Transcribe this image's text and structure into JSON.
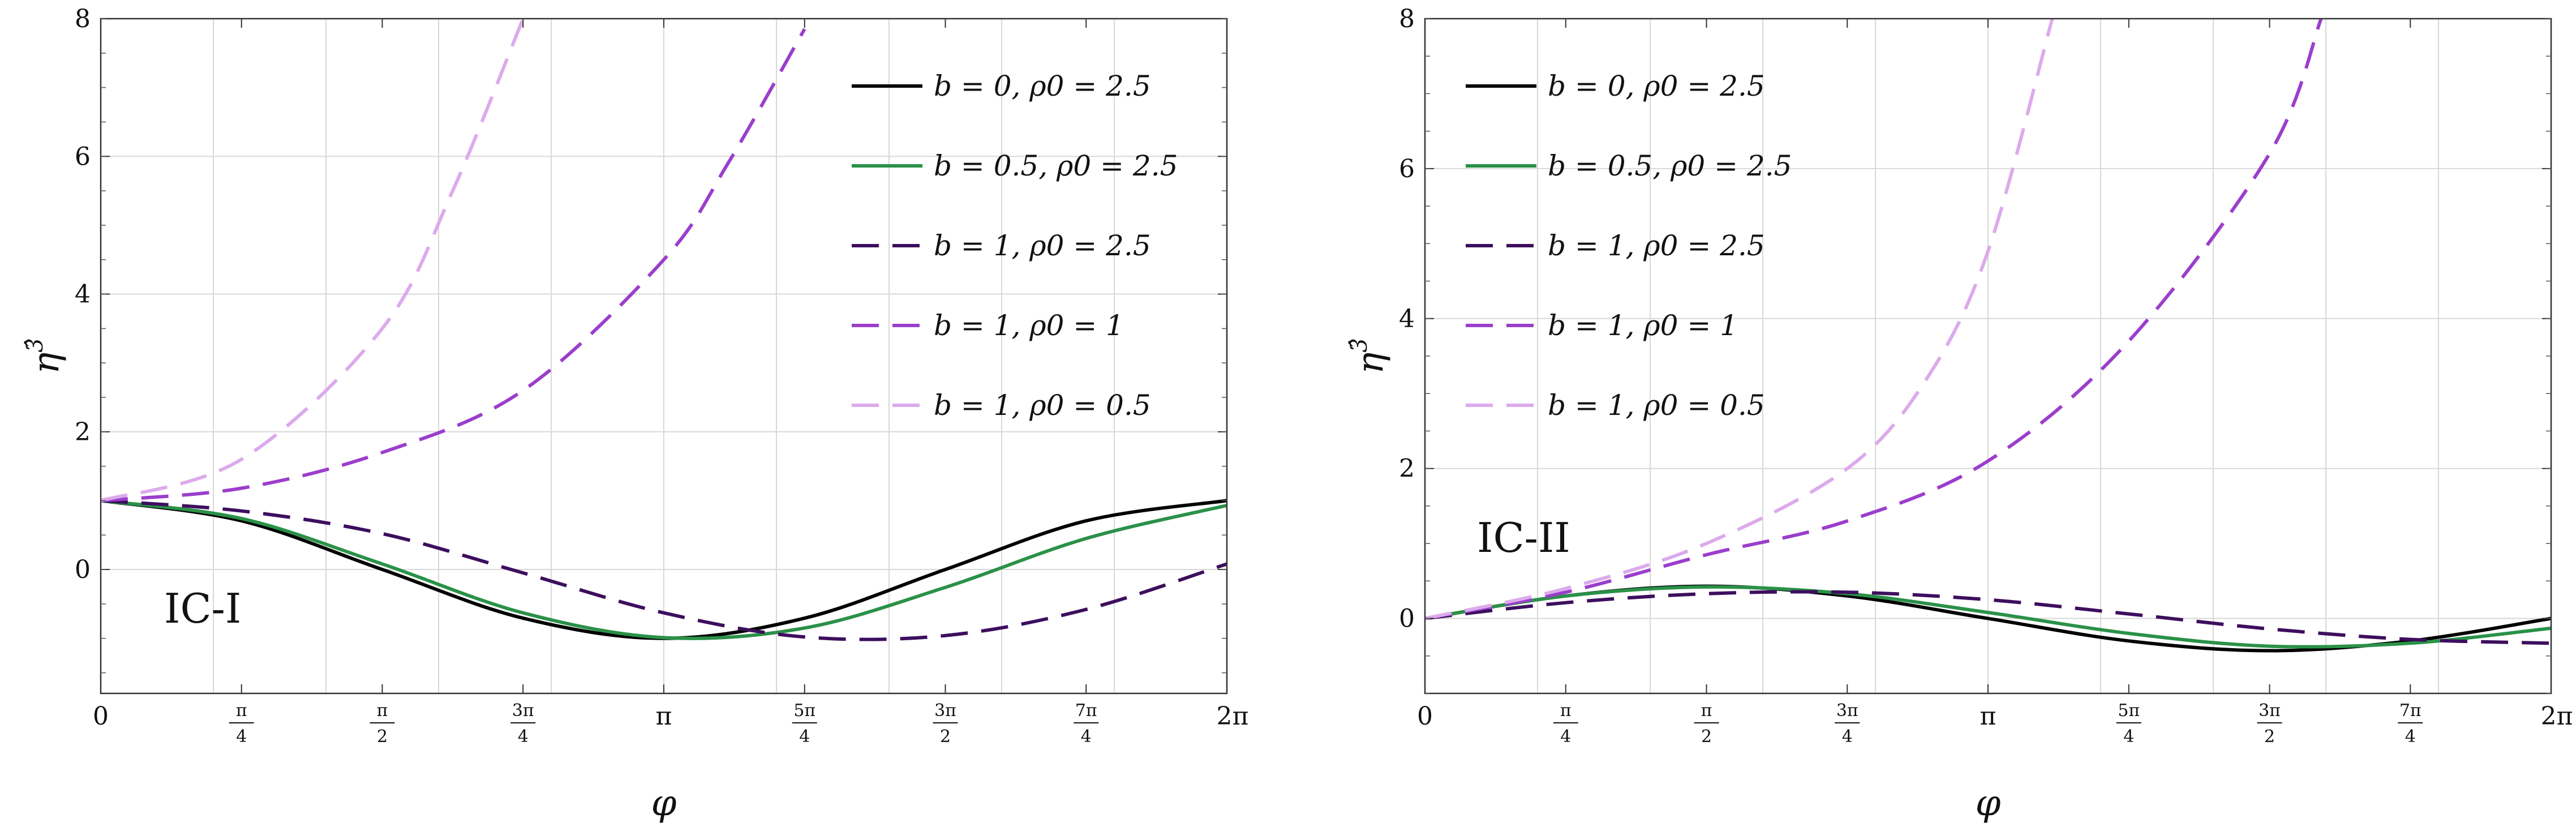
{
  "chart_data": [
    {
      "type": "line",
      "annotation": "IC-I",
      "xlabel": "φ",
      "ylabel": "η^3̂",
      "xlim": [
        0,
        6.2832
      ],
      "ylim": [
        -1.8,
        8
      ],
      "xticks": [
        {
          "value": 0,
          "label": "0"
        },
        {
          "value": 0.7854,
          "label": "π/4"
        },
        {
          "value": 1.5708,
          "label": "π/2"
        },
        {
          "value": 2.3562,
          "label": "3π/4"
        },
        {
          "value": 3.1416,
          "label": "π"
        },
        {
          "value": 3.927,
          "label": "5π/4"
        },
        {
          "value": 4.7124,
          "label": "3π/2"
        },
        {
          "value": 5.4978,
          "label": "7π/4"
        },
        {
          "value": 6.2832,
          "label": "2π"
        }
      ],
      "yticks": [
        0,
        2,
        4,
        6,
        8
      ],
      "legend_position": "top-right",
      "series": [
        {
          "name": "b = 0,  ρ0 = 2.5",
          "color": "#000000",
          "dash": "solid",
          "x": [
            0,
            0.7854,
            1.5708,
            2.3562,
            3.1416,
            3.927,
            4.7124,
            5.4978,
            6.2832
          ],
          "y": [
            1,
            0.707,
            0,
            -0.707,
            -1,
            -0.707,
            0,
            0.707,
            1
          ]
        },
        {
          "name": "b = 0.5,  ρ0 = 2.5",
          "color": "#2a9148",
          "dash": "solid",
          "x": [
            0,
            0.7854,
            1.5708,
            2.3562,
            3.1416,
            3.927,
            4.7124,
            5.4978,
            6.2832
          ],
          "y": [
            1,
            0.74,
            0.08,
            -0.63,
            -0.99,
            -0.85,
            -0.26,
            0.45,
            0.93
          ]
        },
        {
          "name": "b = 1,  ρ0 = 2.5",
          "color": "#3d0e5e",
          "dash": "dashed",
          "x": [
            0,
            0.7854,
            1.5708,
            2.3562,
            3.1416,
            3.927,
            4.7124,
            5.4978,
            6.2832
          ],
          "y": [
            1,
            0.85,
            0.52,
            -0.05,
            -0.63,
            -0.98,
            -0.96,
            -0.58,
            0.08
          ]
        },
        {
          "name": "b = 1,  ρ0 = 1",
          "color": "#9b3ecc",
          "dash": "dashed",
          "x": [
            0,
            0.7854,
            1.5708,
            2.3562,
            3.1416,
            3.5,
            3.927
          ],
          "y": [
            1,
            1.18,
            1.7,
            2.6,
            4.5,
            5.9,
            7.85
          ]
        },
        {
          "name": "b = 1,  ρ0 = 0.5",
          "color": "#dcaaec",
          "dash": "dashed",
          "x": [
            0,
            0.7854,
            1.5708,
            1.9635,
            2.3562
          ],
          "y": [
            1,
            1.6,
            3.5,
            5.5,
            8.0
          ]
        }
      ]
    },
    {
      "type": "line",
      "annotation": "IC-II",
      "xlabel": "φ",
      "ylabel": "η^3̂",
      "xlim": [
        0,
        6.2832
      ],
      "ylim": [
        -1.0,
        8
      ],
      "xticks": [
        {
          "value": 0,
          "label": "0"
        },
        {
          "value": 0.7854,
          "label": "π/4"
        },
        {
          "value": 1.5708,
          "label": "π/2"
        },
        {
          "value": 2.3562,
          "label": "3π/4"
        },
        {
          "value": 3.1416,
          "label": "π"
        },
        {
          "value": 3.927,
          "label": "5π/4"
        },
        {
          "value": 4.7124,
          "label": "3π/2"
        },
        {
          "value": 5.4978,
          "label": "7π/4"
        },
        {
          "value": 6.2832,
          "label": "2π"
        }
      ],
      "yticks": [
        0,
        2,
        4,
        6,
        8
      ],
      "legend_position": "top-left",
      "series": [
        {
          "name": "b = 0,  ρ0 = 2.5",
          "color": "#000000",
          "dash": "solid",
          "x": [
            0,
            0.7854,
            1.5708,
            2.3562,
            3.1416,
            3.927,
            4.7124,
            5.4978,
            6.2832
          ],
          "y": [
            0,
            0.3,
            0.43,
            0.3,
            0,
            -0.3,
            -0.43,
            -0.3,
            0
          ]
        },
        {
          "name": "b = 0.5,  ρ0 = 2.5",
          "color": "#2a9148",
          "dash": "solid",
          "x": [
            0,
            0.7854,
            1.5708,
            2.3562,
            3.1416,
            3.927,
            4.7124,
            5.4978,
            6.2832
          ],
          "y": [
            0,
            0.3,
            0.42,
            0.33,
            0.08,
            -0.2,
            -0.37,
            -0.33,
            -0.13
          ]
        },
        {
          "name": "b = 1,  ρ0 = 2.5",
          "color": "#3d0e5e",
          "dash": "dashed",
          "x": [
            0,
            0.7854,
            1.5708,
            2.3562,
            3.1416,
            3.927,
            4.7124,
            5.4978,
            6.2832
          ],
          "y": [
            0,
            0.21,
            0.33,
            0.35,
            0.25,
            0.06,
            -0.14,
            -0.28,
            -0.33
          ]
        },
        {
          "name": "b = 1,  ρ0 = 1",
          "color": "#9b3ecc",
          "dash": "dashed",
          "x": [
            0,
            0.7854,
            1.5708,
            2.3562,
            3.1416,
            3.927,
            4.7124,
            5.0
          ],
          "y": [
            0,
            0.35,
            0.85,
            1.3,
            2.1,
            3.7,
            6.2,
            8.0
          ]
        },
        {
          "name": "b = 1,  ρ0 = 0.5",
          "color": "#dcaaec",
          "dash": "dashed",
          "x": [
            0,
            0.7854,
            1.5708,
            2.3562,
            2.8,
            3.1416,
            3.5
          ],
          "y": [
            0,
            0.4,
            1.0,
            2.0,
            3.2,
            4.9,
            8.0
          ]
        }
      ]
    }
  ]
}
